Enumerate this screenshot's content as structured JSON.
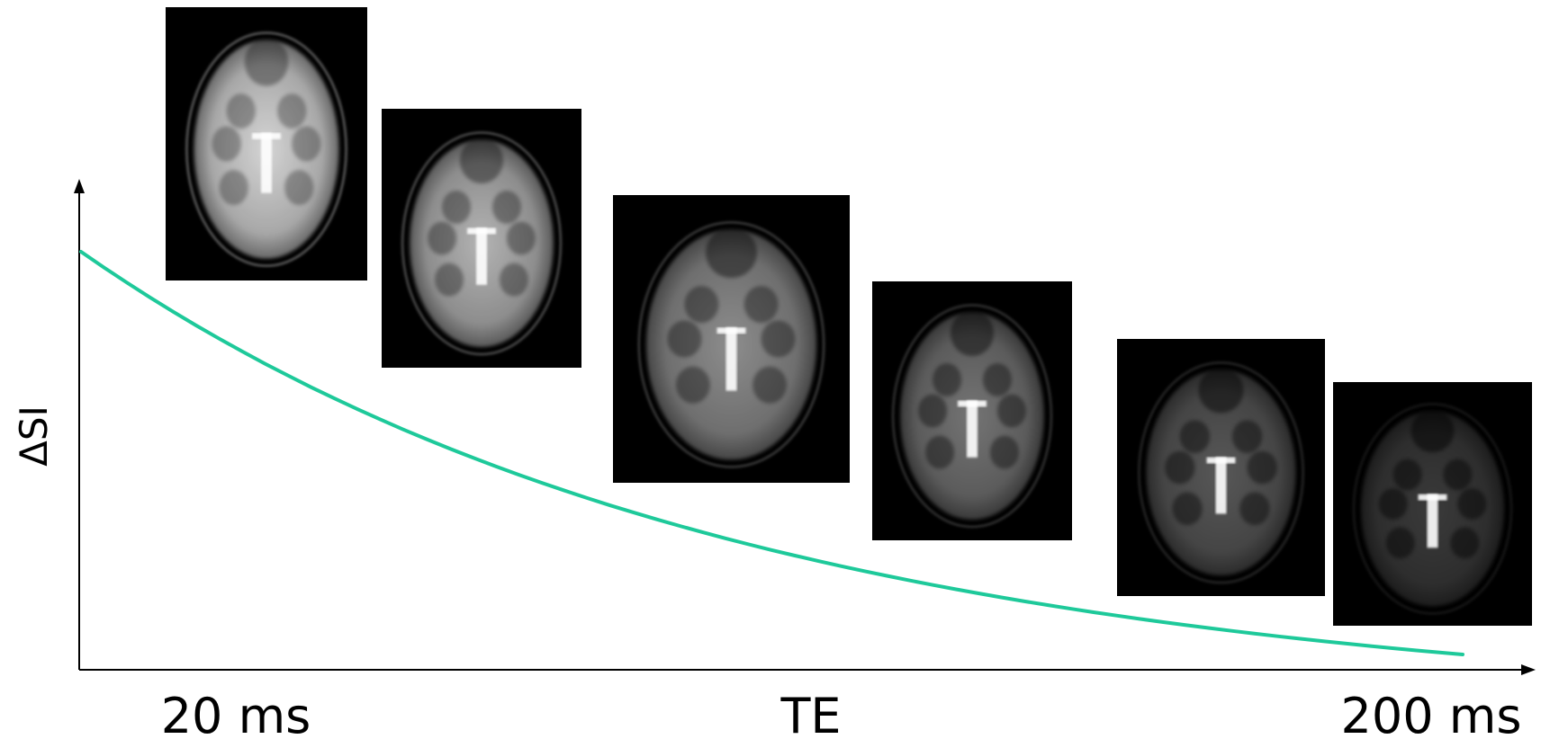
{
  "labels": {
    "y_axis": "ΔSI",
    "x_axis": "TE",
    "x_start": "20 ms",
    "x_end": "200 ms"
  },
  "colors": {
    "curve": "#1ec99a",
    "axis": "#000000",
    "image_background": "#000000"
  },
  "images": [
    {
      "name": "te-image-1",
      "brightness": 0.88
    },
    {
      "name": "te-image-2",
      "brightness": 0.74
    },
    {
      "name": "te-image-3",
      "brightness": 0.58
    },
    {
      "name": "te-image-4",
      "brightness": 0.48
    },
    {
      "name": "te-image-5",
      "brightness": 0.36
    },
    {
      "name": "te-image-6",
      "brightness": 0.24
    }
  ]
}
